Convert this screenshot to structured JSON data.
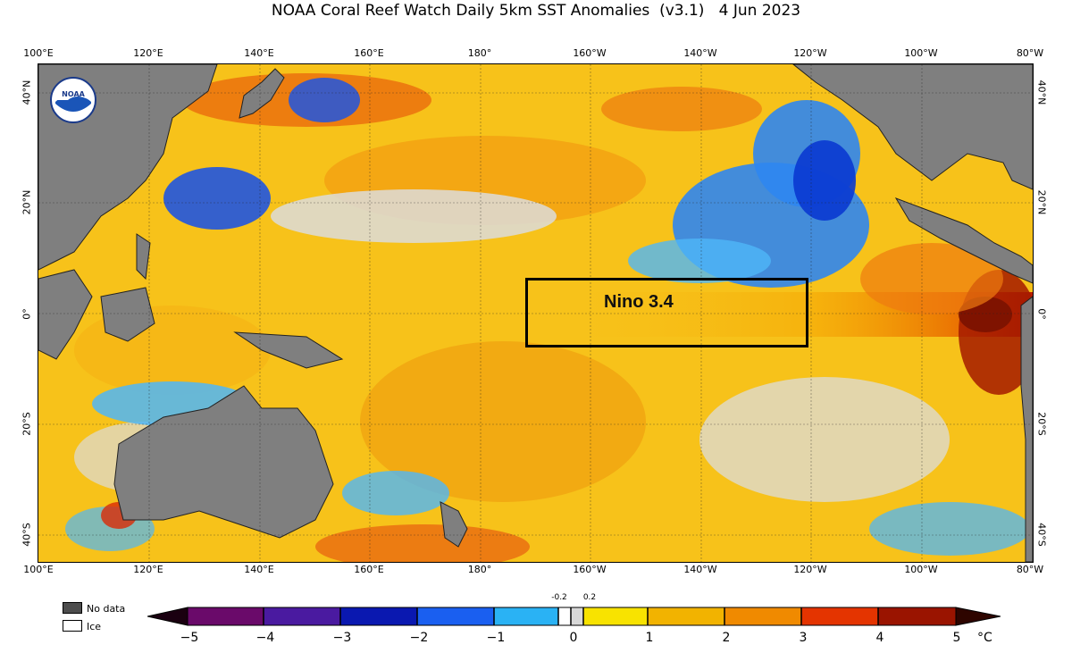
{
  "title": "NOAA Coral Reef Watch Daily 5km SST Anomalies  (v3.1)   4 Jun 2023",
  "lon_labels": [
    "100°E",
    "120°E",
    "140°E",
    "160°E",
    "180°",
    "160°W",
    "140°W",
    "120°W",
    "100°W",
    "80°W"
  ],
  "lat_labels": [
    "40°N",
    "20°N",
    "0°",
    "20°S",
    "40°S"
  ],
  "region_label": "Nino 3.4",
  "legend": {
    "no_data": "No data",
    "ice": "Ice",
    "no_data_color": "#4d4d4d",
    "ice_color": "#ffffff"
  },
  "colorbar": {
    "ticks": [
      "−5",
      "−4",
      "−3",
      "−2",
      "−1",
      "0",
      "1",
      "2",
      "3",
      "4",
      "5"
    ],
    "small_ticks": [
      "-0.2",
      "0.2"
    ],
    "unit": "°C"
  },
  "colors": {
    "land": "#7f7f7f",
    "warm": "#f5b800",
    "cool": "#2f86f0",
    "hot": "#d92b06"
  }
}
